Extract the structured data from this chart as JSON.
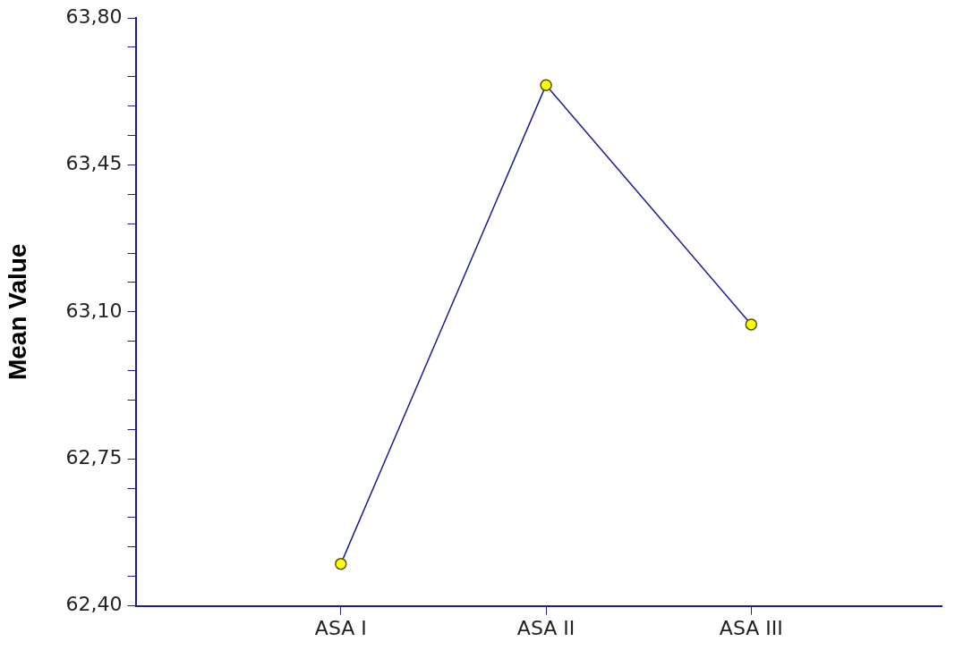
{
  "chart_data": {
    "type": "line",
    "ylabel": "Mean Value",
    "categories": [
      "ASA I",
      "ASA II",
      "ASA III"
    ],
    "series": [
      {
        "color": "#1c1c94",
        "values": [
          62.5,
          63.64,
          63.07
        ]
      }
    ],
    "ylim": [
      62.4,
      63.8
    ],
    "yticks": [
      {
        "value": 62.4,
        "label": "62,40"
      },
      {
        "value": 62.47,
        "label": null
      },
      {
        "value": 62.54,
        "label": null
      },
      {
        "value": 62.61,
        "label": null
      },
      {
        "value": 62.68,
        "label": null
      },
      {
        "value": 62.75,
        "label": "62,75"
      },
      {
        "value": 62.82,
        "label": null
      },
      {
        "value": 62.89,
        "label": null
      },
      {
        "value": 62.96,
        "label": null
      },
      {
        "value": 63.03,
        "label": null
      },
      {
        "value": 63.1,
        "label": "63,10"
      },
      {
        "value": 63.17,
        "label": null
      },
      {
        "value": 63.24,
        "label": null
      },
      {
        "value": 63.31,
        "label": null
      },
      {
        "value": 63.38,
        "label": null
      },
      {
        "value": 63.45,
        "label": "63,45"
      },
      {
        "value": 63.52,
        "label": null
      },
      {
        "value": 63.59,
        "label": null
      },
      {
        "value": 63.66,
        "label": null
      },
      {
        "value": 63.73,
        "label": null
      },
      {
        "value": 63.8,
        "label": "63,80"
      }
    ],
    "grid": false,
    "legend": false,
    "marker": "circle",
    "line_style": "solid"
  }
}
